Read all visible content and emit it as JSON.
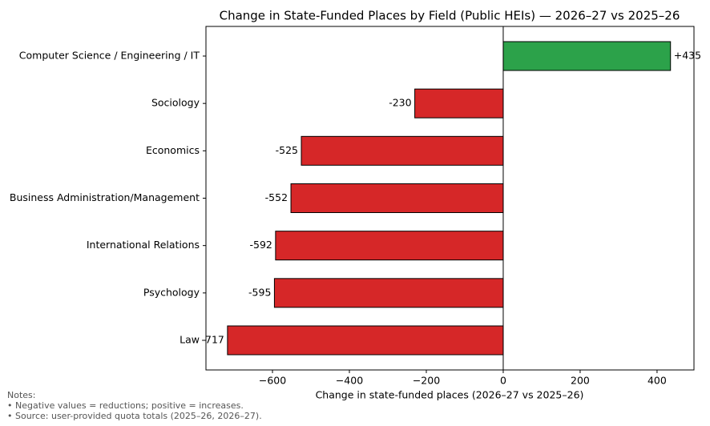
{
  "chart_data": {
    "type": "barh",
    "title": "Change in State-Funded Places by Field (Public HEIs) — 2026–27 vs 2025–26",
    "x_label": "Change in state-funded places (2026–27 vs 2025–26)",
    "categories": [
      "Computer Science / Engineering / IT",
      "Sociology",
      "Economics",
      "Business Administration/Management",
      "International Relations",
      "Psychology",
      "Law"
    ],
    "values": [
      435,
      -230,
      -525,
      -552,
      -592,
      -595,
      -717
    ],
    "value_labels": [
      "+435",
      "-230",
      "-525",
      "-552",
      "-592",
      "-595",
      "-717"
    ],
    "colors": [
      "#2ca24a",
      "#d62728",
      "#d62728",
      "#d62728",
      "#d62728",
      "#d62728",
      "#d62728"
    ],
    "xlim": [
      -773,
      496
    ],
    "xticks": [
      {
        "value": -600,
        "label": "−600"
      },
      {
        "value": -400,
        "label": "−400"
      },
      {
        "value": -200,
        "label": "−200"
      },
      0,
      200,
      400
    ],
    "notes": [
      "Notes:",
      "• Negative values = reductions; positive = increases.",
      "• Source: user-provided quota totals (2025–26, 2026–27)."
    ]
  }
}
